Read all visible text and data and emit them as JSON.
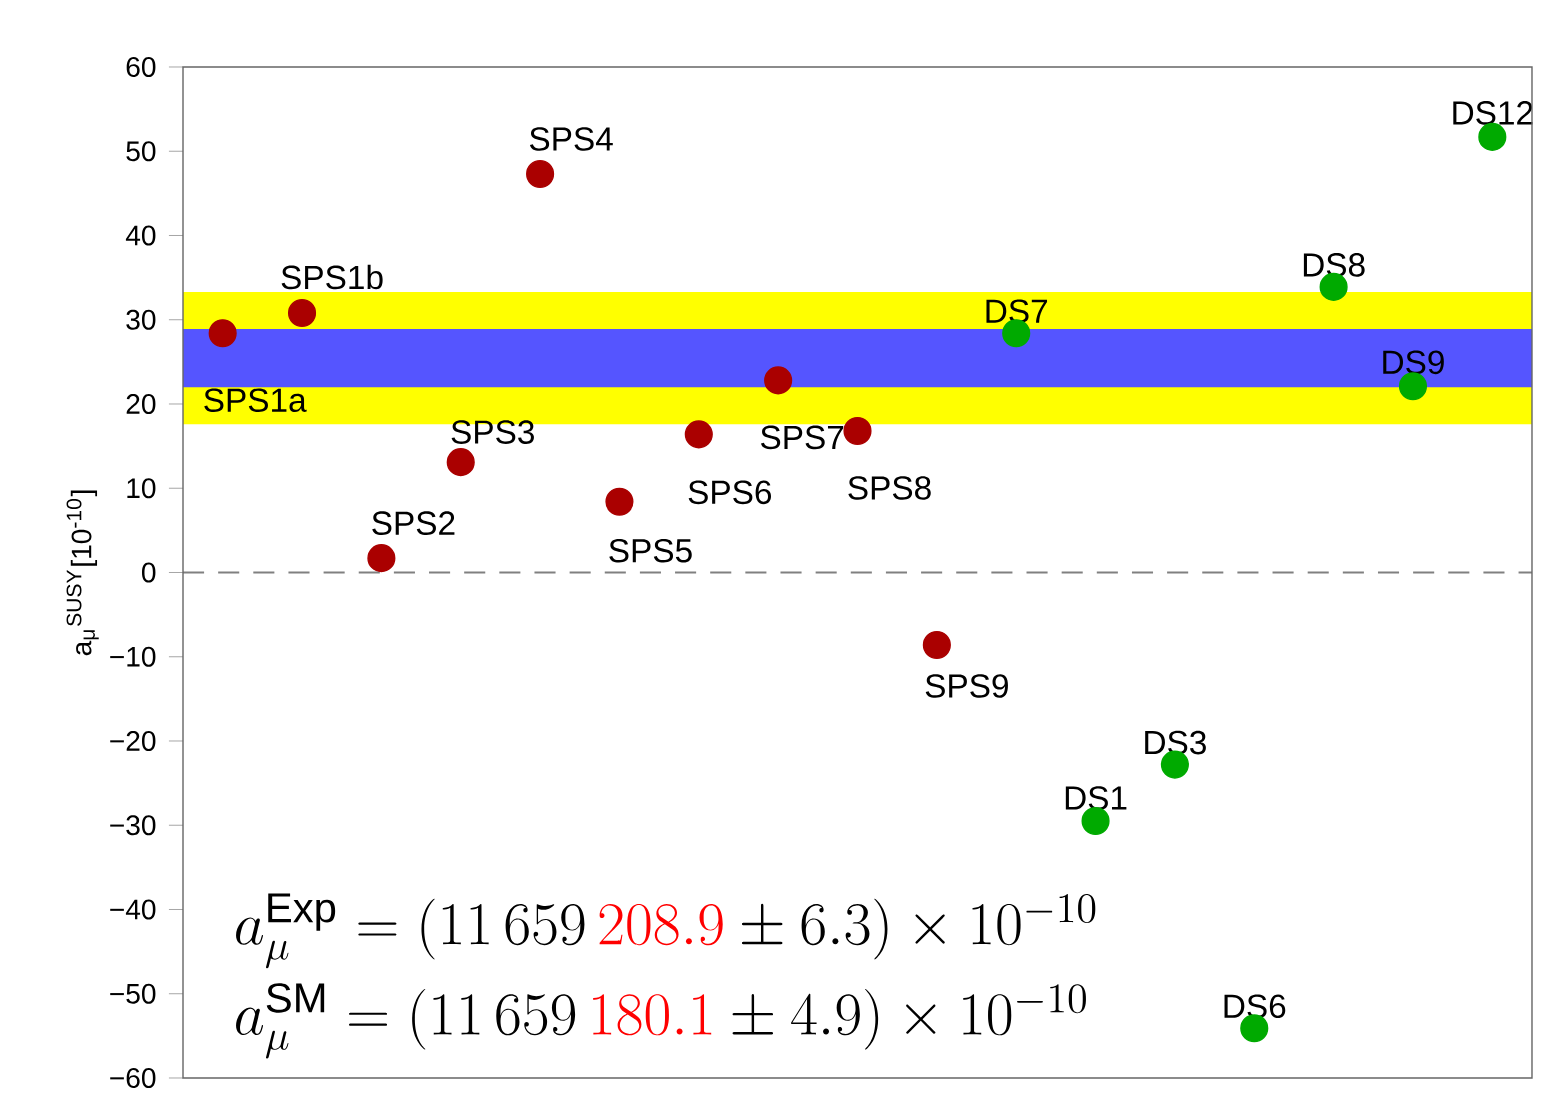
{
  "chart_data": {
    "type": "scatter",
    "ylabel": "a$_{μ}$$^{SUSY}$[10$^{-10}$]",
    "categories": [
      null,
      null,
      null,
      null,
      null,
      null,
      null,
      null,
      null,
      null,
      null,
      null,
      null,
      null,
      null,
      null,
      null
    ],
    "series": [
      {
        "color": "#aa0000",
        "values": [
          28.4,
          30.8,
          1.7,
          13.1,
          47.3,
          8.4,
          16.4,
          22.8,
          16.8,
          -8.6,
          null,
          null,
          null,
          null,
          null,
          null,
          null
        ]
      },
      {
        "color": "#00aa00",
        "values": [
          null,
          null,
          null,
          null,
          null,
          null,
          null,
          null,
          null,
          null,
          28.4,
          -29.5,
          -22.8,
          -54.1,
          33.9,
          22.1,
          51.7
        ]
      }
    ],
    "marker": "circle",
    "ylim": [
      -60,
      60
    ],
    "yticks": [
      {
        "value": -60,
        "label": "−60"
      },
      {
        "value": -50,
        "label": "−50"
      },
      {
        "value": -40,
        "label": "−40"
      },
      {
        "value": -30,
        "label": "−30"
      },
      {
        "value": -20,
        "label": "−20"
      },
      {
        "value": -10,
        "label": "−10"
      },
      0,
      10,
      20,
      30,
      40,
      50,
      60
    ],
    "bands": [
      {
        "axis": "y",
        "from": 17.6,
        "to": 33.3,
        "color": "#ffff00"
      },
      {
        "axis": "y",
        "from": 22.0,
        "to": 28.9,
        "color": "#5555ff"
      }
    ],
    "ref_lines": [
      {
        "axis": "y",
        "value": 0,
        "color": "#808080",
        "line_style": "dashed"
      }
    ],
    "annotations": [
      "SPS1a",
      "SPS1b",
      "SPS2",
      "SPS3",
      "SPS4",
      "SPS5",
      "SPS6",
      "SPS7",
      "SPS8",
      "SPS9",
      "DS7",
      "DS1",
      "DS3",
      "DS6",
      "DS8",
      "DS9",
      "DS12",
      "a_{\\mu}^{\\mathrm{Exp}} = (11\\,659\\,{\\color{red}208.9} \\pm 6.3) \\times 10^{-10}",
      "a_{\\mu}^{\\mathrm{SM}} = (11\\,659\\,{\\color{red}180.1} \\pm 4.9) \\times 10^{-10}"
    ]
  }
}
